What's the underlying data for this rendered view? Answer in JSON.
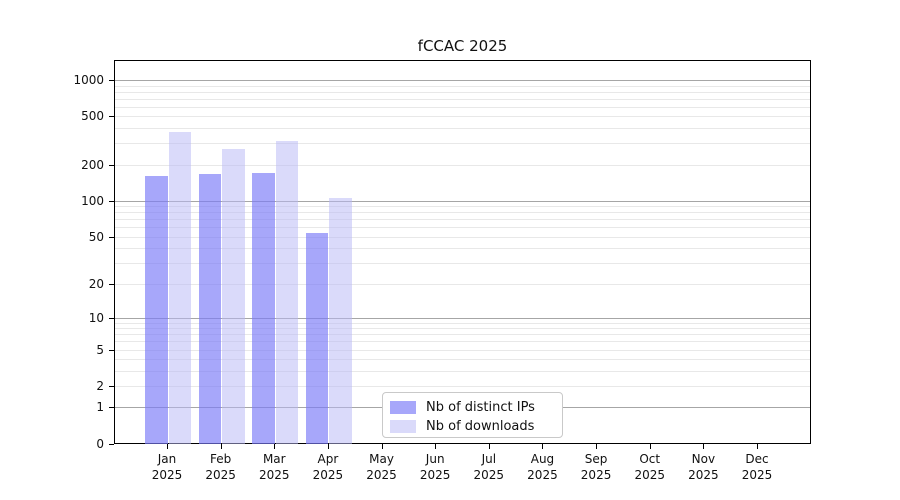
{
  "figure": {
    "background": "#ffffff"
  },
  "chart_data": {
    "type": "bar",
    "title": "fCCAC 2025",
    "categories": [
      "Jan",
      "Feb",
      "Mar",
      "Apr",
      "May",
      "Jun",
      "Jul",
      "Aug",
      "Sep",
      "Oct",
      "Nov",
      "Dec"
    ],
    "year_label": "2025",
    "series": [
      {
        "name": "Nb of distinct IPs",
        "color": "rgba(122,122,248,0.66)",
        "values": [
          160,
          166,
          170,
          54,
          null,
          null,
          null,
          null,
          null,
          null,
          null,
          null
        ]
      },
      {
        "name": "Nb of downloads",
        "color": "rgba(185,185,246,0.52)",
        "values": [
          372,
          268,
          315,
          106,
          null,
          null,
          null,
          null,
          null,
          null,
          null,
          null
        ]
      }
    ],
    "y_scale": "log1p",
    "ylim": [
      0,
      1460
    ],
    "y_ticks": [
      0,
      1,
      2,
      5,
      10,
      20,
      50,
      100,
      200,
      500,
      1000
    ],
    "y_major_gridlines": [
      1,
      10,
      100,
      1000
    ],
    "y_minor_gridlines": [
      2,
      3,
      4,
      5,
      6,
      7,
      8,
      9,
      20,
      30,
      40,
      50,
      60,
      70,
      80,
      90,
      200,
      300,
      400,
      500,
      600,
      700,
      800,
      900
    ],
    "grid": true,
    "legend": {
      "position": "bottom-center-inside",
      "entries": [
        "Nb of distinct IPs",
        "Nb of downloads"
      ]
    },
    "colors": {
      "major_grid": "#a6a6a6",
      "minor_grid": "#e8e8e8",
      "spine": "#000000",
      "text": "#111111"
    }
  }
}
